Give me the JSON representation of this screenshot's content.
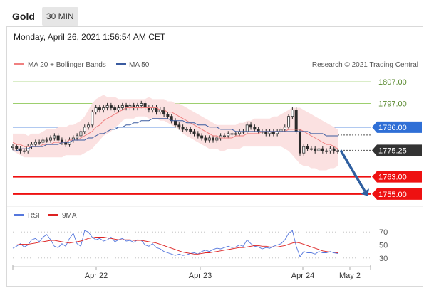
{
  "header": {
    "title": "Gold",
    "timeframe": "30 MIN"
  },
  "date_label": "Monday, April 26, 2021 1:56:54 AM CET",
  "copyright": "Research © 2021 Trading Central",
  "colors": {
    "ma20": "#f08080",
    "ma50": "#3a5ba0",
    "bollinger_band": "#fbe1e1",
    "support": "#ee1111",
    "pivot": "#2f6fd6",
    "resistance": "#9dcf6e",
    "candle": "#2a2a2a",
    "arrow": "#2f5fa0",
    "rsi": "#5577dd",
    "rsi_ma": "#dd2222"
  },
  "chart_data": [
    {
      "type": "line",
      "subtype": "candlestick",
      "legend": [
        "MA 20 + Bollinger Bands",
        "MA 50"
      ],
      "x_ticks": [
        "Apr 22",
        "Apr 23",
        "Apr 24",
        "May 2"
      ],
      "ylim": [
        1750,
        1812
      ],
      "levels": [
        {
          "value": 1807.0,
          "label": "1807.00",
          "kind": "resistance"
        },
        {
          "value": 1797.0,
          "label": "1797.00",
          "kind": "resistance"
        },
        {
          "value": 1786.0,
          "label": "1786.00",
          "kind": "pivot"
        },
        {
          "value": 1775.25,
          "label": "1775.25",
          "kind": "last_price"
        },
        {
          "value": 1763.0,
          "label": "1763.00",
          "kind": "support"
        },
        {
          "value": 1755.0,
          "label": "1755.00",
          "kind": "support"
        }
      ],
      "close": [
        1777,
        1776,
        1775,
        1775,
        1777,
        1778,
        1779,
        1779,
        1780,
        1780,
        1781,
        1782,
        1780,
        1779,
        1778,
        1780,
        1781,
        1782,
        1784,
        1786,
        1787,
        1793,
        1795,
        1794,
        1795,
        1796,
        1795,
        1794,
        1795,
        1796,
        1795,
        1796,
        1795,
        1796,
        1797,
        1795,
        1794,
        1795,
        1793,
        1794,
        1792,
        1791,
        1789,
        1787,
        1786,
        1785,
        1785,
        1784,
        1783,
        1782,
        1781,
        1780,
        1781,
        1780,
        1781,
        1782,
        1782,
        1783,
        1783,
        1783,
        1784,
        1784,
        1787,
        1786,
        1785,
        1784,
        1784,
        1783,
        1784,
        1783,
        1784,
        1785,
        1786,
        1791,
        1794,
        1784,
        1774,
        1777,
        1776,
        1776,
        1775,
        1776,
        1775,
        1775,
        1776,
        1775,
        1775
      ],
      "ma20": [
        1779,
        1778,
        1778,
        1777,
        1777,
        1777,
        1777,
        1777,
        1778,
        1778,
        1778,
        1779,
        1779,
        1779,
        1779,
        1780,
        1780,
        1780,
        1781,
        1782,
        1783,
        1784,
        1786,
        1787,
        1789,
        1790,
        1791,
        1792,
        1793,
        1794,
        1795,
        1795,
        1795,
        1795,
        1795,
        1795,
        1795,
        1795,
        1795,
        1794,
        1794,
        1793,
        1793,
        1792,
        1791,
        1790,
        1789,
        1788,
        1787,
        1786,
        1785,
        1784,
        1783,
        1782,
        1782,
        1781,
        1781,
        1781,
        1781,
        1782,
        1782,
        1782,
        1783,
        1783,
        1783,
        1783,
        1784,
        1784,
        1784,
        1784,
        1784,
        1784,
        1784,
        1785,
        1785,
        1785,
        1785,
        1784,
        1783,
        1782,
        1781,
        1780,
        1779,
        1778,
        1778,
        1777,
        1776
      ],
      "band_upper": [
        1783,
        1783,
        1783,
        1783,
        1782,
        1783,
        1783,
        1783,
        1784,
        1785,
        1785,
        1785,
        1786,
        1786,
        1786,
        1787,
        1787,
        1788,
        1789,
        1791,
        1794,
        1797,
        1799,
        1800,
        1801,
        1800,
        1800,
        1800,
        1799,
        1799,
        1799,
        1799,
        1799,
        1799,
        1799,
        1799,
        1800,
        1799,
        1799,
        1799,
        1799,
        1798,
        1798,
        1797,
        1797,
        1796,
        1795,
        1794,
        1793,
        1792,
        1791,
        1790,
        1789,
        1788,
        1787,
        1787,
        1787,
        1787,
        1787,
        1787,
        1788,
        1788,
        1789,
        1789,
        1790,
        1790,
        1790,
        1790,
        1790,
        1791,
        1791,
        1792,
        1793,
        1794,
        1795,
        1795,
        1795,
        1794,
        1793,
        1792,
        1791,
        1790,
        1789,
        1788,
        1787,
        1786,
        1785
      ],
      "band_lower": [
        1775,
        1774,
        1773,
        1772,
        1772,
        1772,
        1772,
        1772,
        1772,
        1772,
        1772,
        1772,
        1772,
        1772,
        1773,
        1773,
        1773,
        1773,
        1773,
        1774,
        1775,
        1776,
        1778,
        1780,
        1782,
        1783,
        1784,
        1786,
        1787,
        1789,
        1790,
        1790,
        1790,
        1791,
        1791,
        1791,
        1790,
        1790,
        1790,
        1789,
        1789,
        1788,
        1787,
        1786,
        1785,
        1783,
        1782,
        1781,
        1780,
        1779,
        1778,
        1777,
        1776,
        1776,
        1776,
        1775,
        1775,
        1776,
        1776,
        1776,
        1776,
        1777,
        1777,
        1777,
        1777,
        1777,
        1777,
        1777,
        1777,
        1777,
        1777,
        1777,
        1776,
        1775,
        1773,
        1771,
        1769,
        1768,
        1768,
        1767,
        1767,
        1766,
        1766,
        1766,
        1767,
        1767,
        1768
      ],
      "ma50": [
        1775,
        1775,
        1776,
        1776,
        1776,
        1777,
        1777,
        1777,
        1777,
        1778,
        1778,
        1778,
        1778,
        1779,
        1779,
        1779,
        1780,
        1780,
        1780,
        1780,
        1781,
        1781,
        1782,
        1783,
        1783,
        1784,
        1785,
        1785,
        1786,
        1786,
        1787,
        1787,
        1788,
        1788,
        1789,
        1789,
        1789,
        1790,
        1790,
        1790,
        1790,
        1790,
        1789,
        1789,
        1789,
        1789,
        1788,
        1788,
        1788,
        1787,
        1787,
        1787,
        1786,
        1786,
        1786,
        1785,
        1785,
        1785,
        1785,
        1784,
        1784,
        1784,
        1784,
        1784,
        1784,
        1784,
        1784,
        1784,
        1784,
        1784,
        1784,
        1784,
        1784,
        1784,
        1784,
        1784,
        1784,
        1784,
        1784,
        1783,
        1783,
        1783,
        1783,
        1782,
        1782,
        1782,
        1782
      ],
      "forecast_arrow": {
        "from": 1775.25,
        "to": 1755.0
      }
    },
    {
      "type": "line",
      "legend": [
        "RSI",
        "9MA"
      ],
      "ylim": [
        20,
        80
      ],
      "y_ticks": [
        "70",
        "50",
        "30"
      ],
      "rsi": [
        45,
        48,
        52,
        47,
        50,
        58,
        60,
        55,
        62,
        66,
        58,
        48,
        46,
        52,
        48,
        60,
        68,
        52,
        48,
        72,
        70,
        62,
        58,
        60,
        56,
        58,
        62,
        55,
        58,
        60,
        56,
        57,
        54,
        58,
        57,
        50,
        48,
        52,
        46,
        44,
        40,
        38,
        36,
        34,
        36,
        34,
        35,
        37,
        38,
        36,
        40,
        42,
        40,
        43,
        45,
        44,
        46,
        48,
        46,
        47,
        50,
        48,
        58,
        52,
        48,
        47,
        44,
        46,
        45,
        48,
        50,
        52,
        58,
        68,
        72,
        48,
        32,
        40,
        38,
        38,
        36,
        40,
        38,
        38,
        40,
        38,
        37
      ],
      "ma9": [
        50,
        50,
        51,
        51,
        51,
        52,
        53,
        54,
        55,
        56,
        57,
        57,
        56,
        55,
        54,
        53,
        54,
        55,
        56,
        58,
        60,
        61,
        62,
        62,
        62,
        61,
        60,
        59,
        58,
        58,
        58,
        58,
        57,
        57,
        57,
        56,
        55,
        54,
        53,
        51,
        49,
        47,
        45,
        43,
        41,
        39,
        38,
        37,
        36,
        36,
        37,
        38,
        38,
        39,
        40,
        41,
        42,
        43,
        44,
        45,
        46,
        46,
        47,
        48,
        49,
        49,
        48,
        48,
        47,
        47,
        47,
        48,
        49,
        51,
        53,
        54,
        53,
        51,
        49,
        47,
        45,
        43,
        41,
        40,
        39,
        39,
        38
      ]
    }
  ]
}
